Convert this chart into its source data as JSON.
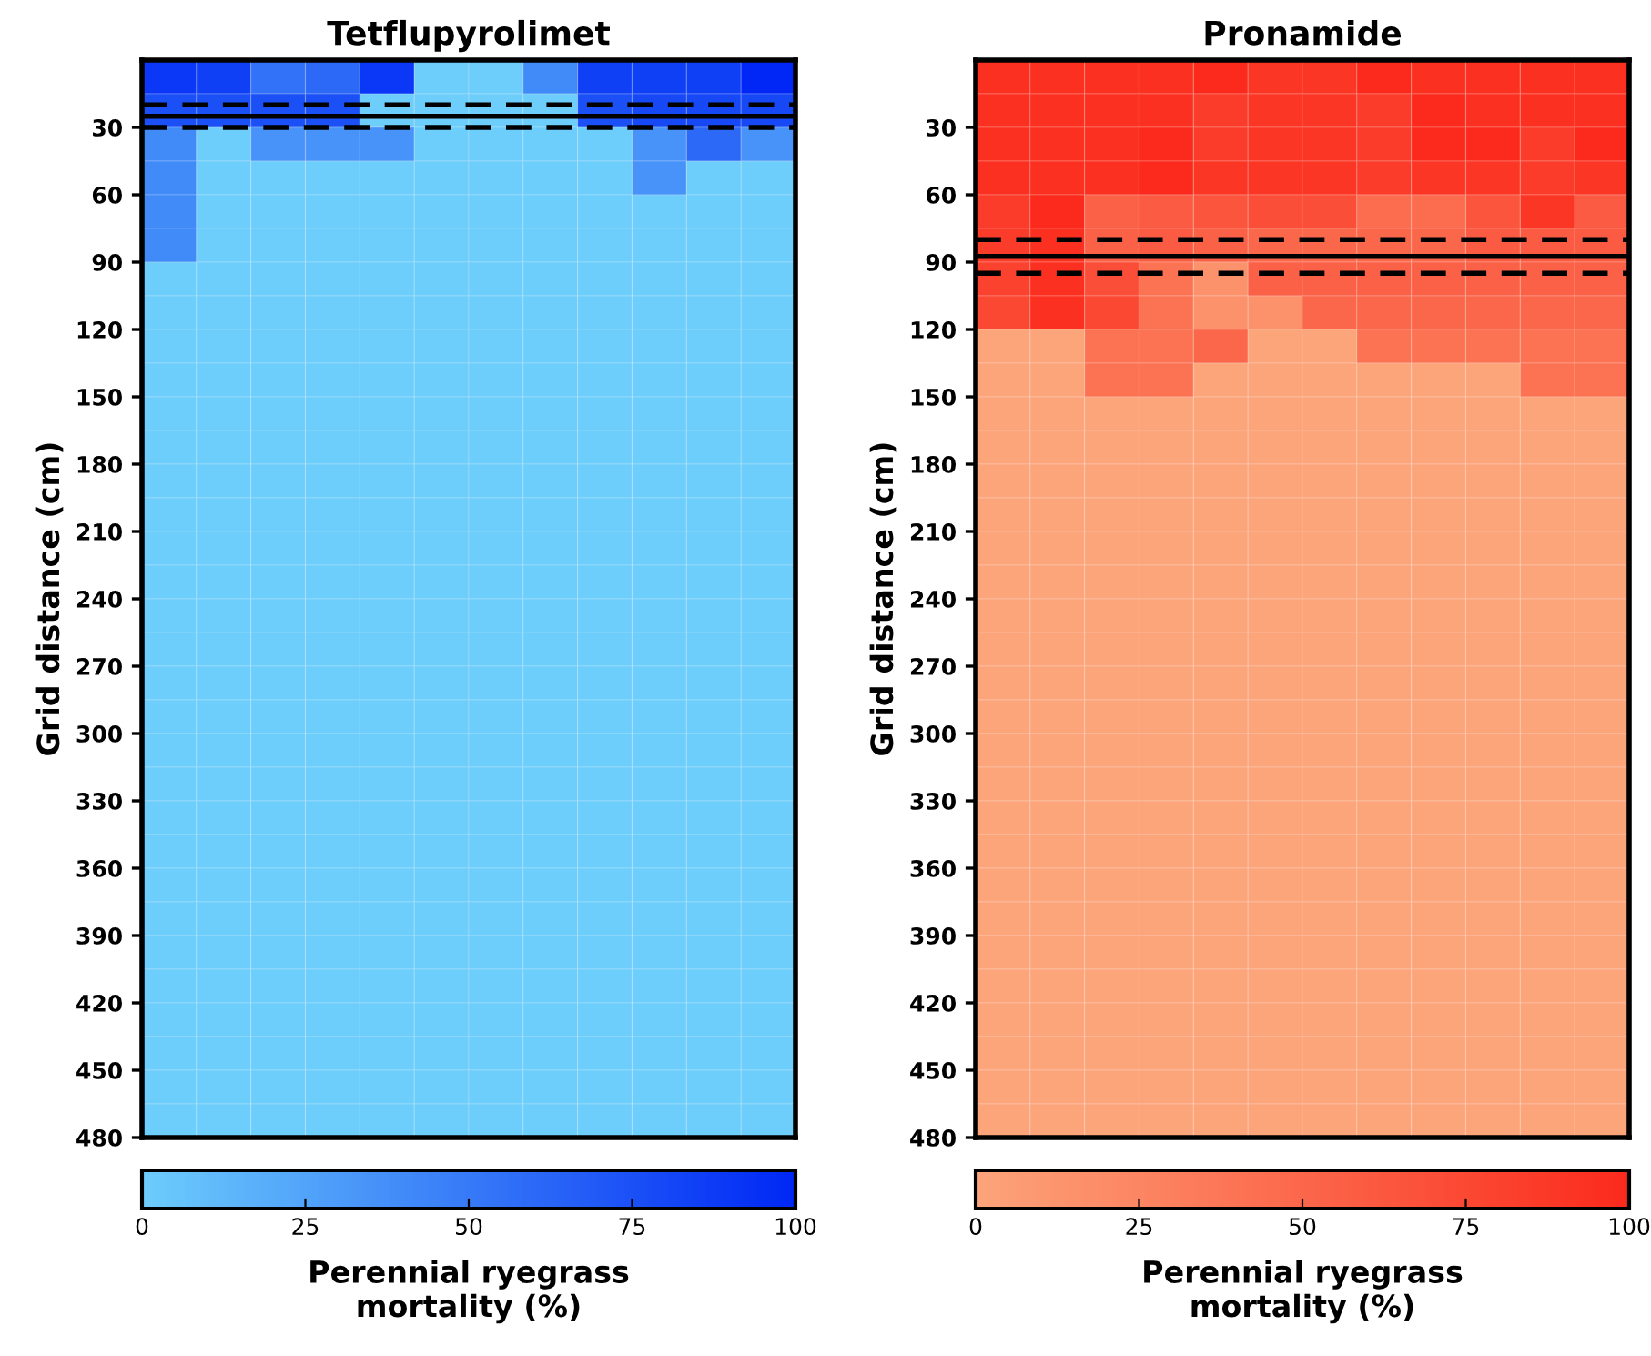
{
  "chart_data": [
    {
      "type": "heatmap",
      "title": "Tetflupyrolimet",
      "ylabel": "Grid distance (cm)",
      "clabel": "Perennial ryegrass\nmortality (%)",
      "categories": [
        null,
        null,
        null,
        null,
        null,
        null,
        null,
        null,
        null,
        null,
        null,
        null
      ],
      "ylim": [
        480,
        0
      ],
      "yticks": [
        30,
        60,
        90,
        120,
        150,
        180,
        210,
        240,
        270,
        300,
        330,
        360,
        390,
        420,
        450,
        480
      ],
      "clim": [
        0,
        100
      ],
      "cticks": [
        0,
        25,
        50,
        75,
        100
      ],
      "colors": [
        "#6dcdfb",
        "#0027f5"
      ],
      "ref_lines": [
        {
          "axis": "y",
          "value": 20,
          "line_style": "dashed",
          "color": "#000000"
        },
        {
          "axis": "y",
          "value": 25,
          "line_style": "solid",
          "color": "#000000"
        },
        {
          "axis": "y",
          "value": 30,
          "line_style": "dashed",
          "color": "#000000"
        }
      ],
      "tick_labels": "y",
      "cells": [
        [
          90,
          85,
          55,
          60,
          90,
          0,
          0,
          40,
          85,
          85,
          85,
          100
        ],
        [
          75,
          75,
          75,
          75,
          0,
          0,
          0,
          0,
          75,
          80,
          80,
          80
        ],
        [
          40,
          0,
          35,
          35,
          35,
          0,
          0,
          0,
          0,
          35,
          60,
          35
        ],
        [
          40,
          0,
          0,
          0,
          0,
          0,
          0,
          0,
          0,
          35,
          0,
          0
        ],
        [
          40,
          0,
          0,
          0,
          0,
          0,
          0,
          0,
          0,
          0,
          0,
          0
        ],
        [
          40,
          0,
          0,
          0,
          0,
          0,
          0,
          0,
          0,
          0,
          0,
          0
        ],
        [
          0,
          0,
          0,
          0,
          0,
          0,
          0,
          0,
          0,
          0,
          0,
          0
        ],
        [
          0,
          0,
          0,
          0,
          0,
          0,
          0,
          0,
          0,
          0,
          0,
          0
        ],
        [
          0,
          0,
          0,
          0,
          0,
          0,
          0,
          0,
          0,
          0,
          0,
          0
        ],
        [
          0,
          0,
          0,
          0,
          0,
          0,
          0,
          0,
          0,
          0,
          0,
          0
        ],
        [
          0,
          0,
          0,
          0,
          0,
          0,
          0,
          0,
          0,
          0,
          0,
          0
        ],
        [
          0,
          0,
          0,
          0,
          0,
          0,
          0,
          0,
          0,
          0,
          0,
          0
        ],
        [
          0,
          0,
          0,
          0,
          0,
          0,
          0,
          0,
          0,
          0,
          0,
          0
        ],
        [
          0,
          0,
          0,
          0,
          0,
          0,
          0,
          0,
          0,
          0,
          0,
          0
        ],
        [
          0,
          0,
          0,
          0,
          0,
          0,
          0,
          0,
          0,
          0,
          0,
          0
        ],
        [
          0,
          0,
          0,
          0,
          0,
          0,
          0,
          0,
          0,
          0,
          0,
          0
        ],
        [
          0,
          0,
          0,
          0,
          0,
          0,
          0,
          0,
          0,
          0,
          0,
          0
        ],
        [
          0,
          0,
          0,
          0,
          0,
          0,
          0,
          0,
          0,
          0,
          0,
          0
        ],
        [
          0,
          0,
          0,
          0,
          0,
          0,
          0,
          0,
          0,
          0,
          0,
          0
        ],
        [
          0,
          0,
          0,
          0,
          0,
          0,
          0,
          0,
          0,
          0,
          0,
          0
        ],
        [
          0,
          0,
          0,
          0,
          0,
          0,
          0,
          0,
          0,
          0,
          0,
          0
        ],
        [
          0,
          0,
          0,
          0,
          0,
          0,
          0,
          0,
          0,
          0,
          0,
          0
        ],
        [
          0,
          0,
          0,
          0,
          0,
          0,
          0,
          0,
          0,
          0,
          0,
          0
        ],
        [
          0,
          0,
          0,
          0,
          0,
          0,
          0,
          0,
          0,
          0,
          0,
          0
        ],
        [
          0,
          0,
          0,
          0,
          0,
          0,
          0,
          0,
          0,
          0,
          0,
          0
        ],
        [
          0,
          0,
          0,
          0,
          0,
          0,
          0,
          0,
          0,
          0,
          0,
          0
        ],
        [
          0,
          0,
          0,
          0,
          0,
          0,
          0,
          0,
          0,
          0,
          0,
          0
        ],
        [
          0,
          0,
          0,
          0,
          0,
          0,
          0,
          0,
          0,
          0,
          0,
          0
        ],
        [
          0,
          0,
          0,
          0,
          0,
          0,
          0,
          0,
          0,
          0,
          0,
          0
        ],
        [
          0,
          0,
          0,
          0,
          0,
          0,
          0,
          0,
          0,
          0,
          0,
          0
        ],
        [
          0,
          0,
          0,
          0,
          0,
          0,
          0,
          0,
          0,
          0,
          0,
          0
        ],
        [
          0,
          0,
          0,
          0,
          0,
          0,
          0,
          0,
          0,
          0,
          0,
          0
        ]
      ]
    },
    {
      "type": "heatmap",
      "title": "Pronamide",
      "ylabel": "Grid distance (cm)",
      "clabel": "Perennial ryegrass\nmortality (%)",
      "categories": [
        null,
        null,
        null,
        null,
        null,
        null,
        null,
        null,
        null,
        null,
        null,
        null
      ],
      "ylim": [
        480,
        0
      ],
      "yticks": [
        30,
        60,
        90,
        120,
        150,
        180,
        210,
        240,
        270,
        300,
        330,
        360,
        390,
        420,
        450,
        480
      ],
      "clim": [
        0,
        100
      ],
      "cticks": [
        0,
        25,
        50,
        75,
        100
      ],
      "colors": [
        "#fca47a",
        "#fb2a1c"
      ],
      "ref_lines": [
        {
          "axis": "y",
          "value": 80,
          "line_style": "dashed",
          "color": "#000000"
        },
        {
          "axis": "y",
          "value": 87.5,
          "line_style": "solid",
          "color": "#000000"
        },
        {
          "axis": "y",
          "value": 95,
          "line_style": "dashed",
          "color": "#000000"
        }
      ],
      "tick_labels": "y",
      "cells": [
        [
          95,
          95,
          95,
          95,
          100,
          90,
          90,
          100,
          95,
          95,
          95,
          95
        ],
        [
          95,
          95,
          95,
          95,
          85,
          90,
          90,
          85,
          100,
          95,
          95,
          95
        ],
        [
          95,
          95,
          95,
          100,
          85,
          90,
          90,
          85,
          100,
          100,
          85,
          100
        ],
        [
          95,
          95,
          95,
          100,
          90,
          90,
          90,
          85,
          90,
          90,
          85,
          90
        ],
        [
          85,
          100,
          55,
          60,
          65,
          70,
          70,
          45,
          45,
          65,
          90,
          60
        ],
        [
          85,
          95,
          55,
          60,
          55,
          50,
          50,
          50,
          50,
          60,
          60,
          60
        ],
        [
          80,
          95,
          70,
          40,
          15,
          55,
          55,
          55,
          55,
          55,
          55,
          55
        ],
        [
          75,
          95,
          75,
          40,
          15,
          15,
          50,
          50,
          50,
          50,
          50,
          50
        ],
        [
          0,
          0,
          40,
          40,
          50,
          0,
          0,
          40,
          40,
          40,
          40,
          40
        ],
        [
          0,
          0,
          40,
          40,
          0,
          0,
          0,
          0,
          0,
          0,
          40,
          40
        ],
        [
          0,
          0,
          0,
          0,
          0,
          0,
          0,
          0,
          0,
          0,
          0,
          0
        ],
        [
          0,
          0,
          0,
          0,
          0,
          0,
          0,
          0,
          0,
          0,
          0,
          0
        ],
        [
          0,
          0,
          0,
          0,
          0,
          0,
          0,
          0,
          0,
          0,
          0,
          0
        ],
        [
          0,
          0,
          0,
          0,
          0,
          0,
          0,
          0,
          0,
          0,
          0,
          0
        ],
        [
          0,
          0,
          0,
          0,
          0,
          0,
          0,
          0,
          0,
          0,
          0,
          0
        ],
        [
          0,
          0,
          0,
          0,
          0,
          0,
          0,
          0,
          0,
          0,
          0,
          0
        ],
        [
          0,
          0,
          0,
          0,
          0,
          0,
          0,
          0,
          0,
          0,
          0,
          0
        ],
        [
          0,
          0,
          0,
          0,
          0,
          0,
          0,
          0,
          0,
          0,
          0,
          0
        ],
        [
          0,
          0,
          0,
          0,
          0,
          0,
          0,
          0,
          0,
          0,
          0,
          0
        ],
        [
          0,
          0,
          0,
          0,
          0,
          0,
          0,
          0,
          0,
          0,
          0,
          0
        ],
        [
          0,
          0,
          0,
          0,
          0,
          0,
          0,
          0,
          0,
          0,
          0,
          0
        ],
        [
          0,
          0,
          0,
          0,
          0,
          0,
          0,
          0,
          0,
          0,
          0,
          0
        ],
        [
          0,
          0,
          0,
          0,
          0,
          0,
          0,
          0,
          0,
          0,
          0,
          0
        ],
        [
          0,
          0,
          0,
          0,
          0,
          0,
          0,
          0,
          0,
          0,
          0,
          0
        ],
        [
          0,
          0,
          0,
          0,
          0,
          0,
          0,
          0,
          0,
          0,
          0,
          0
        ],
        [
          0,
          0,
          0,
          0,
          0,
          0,
          0,
          0,
          0,
          0,
          0,
          0
        ],
        [
          0,
          0,
          0,
          0,
          0,
          0,
          0,
          0,
          0,
          0,
          0,
          0
        ],
        [
          0,
          0,
          0,
          0,
          0,
          0,
          0,
          0,
          0,
          0,
          0,
          0
        ],
        [
          0,
          0,
          0,
          0,
          0,
          0,
          0,
          0,
          0,
          0,
          0,
          0
        ],
        [
          0,
          0,
          0,
          0,
          0,
          0,
          0,
          0,
          0,
          0,
          0,
          0
        ],
        [
          0,
          0,
          0,
          0,
          0,
          0,
          0,
          0,
          0,
          0,
          0,
          0
        ],
        [
          0,
          0,
          0,
          0,
          0,
          0,
          0,
          0,
          0,
          0,
          0,
          0
        ]
      ]
    }
  ]
}
